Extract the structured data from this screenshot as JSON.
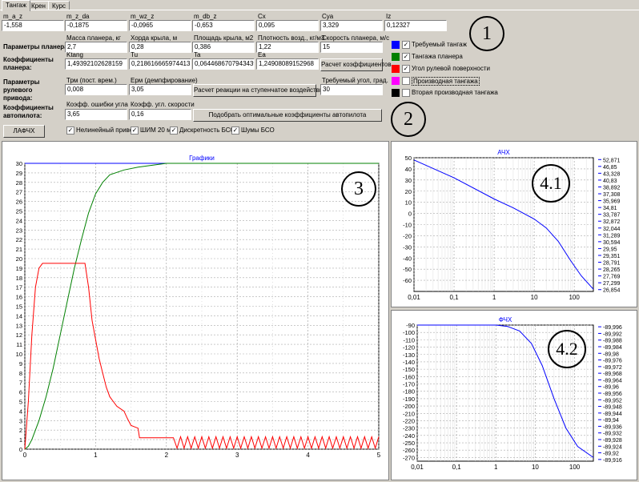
{
  "tabs": [
    "Тангаж",
    "Крен",
    "Курс"
  ],
  "params_row1": [
    {
      "label": "m_a_z",
      "value": "-1,558"
    },
    {
      "label": "m_z_da",
      "value": "-0,1875"
    },
    {
      "label": "m_wz_z",
      "value": "-0,0965"
    },
    {
      "label": "m_db_z",
      "value": "-0,653"
    },
    {
      "label": "Cx",
      "value": "0,095"
    },
    {
      "label": "Cya",
      "value": "3,329"
    },
    {
      "label": "Iz",
      "value": "0,12327"
    }
  ],
  "glider": {
    "title": "Параметры планера:",
    "fields": [
      {
        "label": "Масса планера, кг",
        "value": "2,7"
      },
      {
        "label": "Хорда крыла, м",
        "value": "0,28"
      },
      {
        "label": "Площадь крыла, м2",
        "value": "0,386"
      },
      {
        "label": "Плотность возд., кг/м3",
        "value": "1,22"
      },
      {
        "label": "Скорость планера, м/с",
        "value": "15"
      }
    ]
  },
  "coeffs": {
    "title": "Коэффициенты планера:",
    "fields": [
      {
        "label": "Ktang",
        "value": "1,49392102628159"
      },
      {
        "label": "Tu",
        "value": "0,218616665974413"
      },
      {
        "label": "Ta",
        "value": "0,0644686707943439"
      },
      {
        "label": "Ea",
        "value": "1,24908089152968"
      }
    ],
    "button": "Расчет коэффициентов"
  },
  "actuator": {
    "title": "Параметры рулевого привода:",
    "fields": [
      {
        "label": "Трм (пост. врем.)",
        "value": "0,008"
      },
      {
        "label": "Ерм (демпфирование)",
        "value": "3,05"
      }
    ],
    "button": "Расчет реакции на ступенчатое воздействие",
    "angle_label": "Требуемый угол, град.",
    "angle_value": "30"
  },
  "autopilot": {
    "title": "Коэффициенты автопилота:",
    "fields": [
      {
        "label": "Коэфф. ошибки угла",
        "value": "3,65"
      },
      {
        "label": "Коэфф. угл. скорости",
        "value": "0,16"
      }
    ],
    "button": "Подобрать оптимальные коэффициенты автопилота"
  },
  "legend": [
    {
      "label": "Требуемый тангаж",
      "color": "#0000ff",
      "checked": true
    },
    {
      "label": "Тангажа планера",
      "color": "#008000",
      "checked": true
    },
    {
      "label": "Угол рулевой поверхности",
      "color": "#ff0000",
      "checked": true
    },
    {
      "label": "Производная тангажа",
      "color": "#ff00ff",
      "checked": false
    },
    {
      "label": "Вторая производная тангажа",
      "color": "#000000",
      "checked": false
    }
  ],
  "options": {
    "lafchx_button": "ЛАФЧХ",
    "checks": [
      {
        "label": "Нелинейный привод",
        "checked": true
      },
      {
        "label": "ШИМ 20 мс",
        "checked": true
      },
      {
        "label": "Дискретность БСО",
        "checked": true
      },
      {
        "label": "Шумы БСО",
        "checked": true
      }
    ]
  },
  "annotations": [
    "1",
    "2",
    "3",
    "4.1",
    "4.2"
  ],
  "chart_data": [
    {
      "type": "line",
      "title": "Графики",
      "xlim": [
        0,
        5
      ],
      "ylim": [
        0,
        30
      ],
      "x_ticks": [
        "0",
        "1",
        "2",
        "3",
        "4",
        "5"
      ],
      "y_ticks": [
        "0",
        "1",
        "2",
        "3",
        "4",
        "5",
        "6",
        "7",
        "8",
        "9",
        "10",
        "11",
        "12",
        "13",
        "14",
        "15",
        "16",
        "17",
        "18",
        "19",
        "20",
        "21",
        "22",
        "23",
        "24",
        "25",
        "26",
        "27",
        "28",
        "29",
        "30"
      ],
      "series": [
        {
          "color": "#0000ff",
          "x": [
            0,
            5
          ],
          "y": [
            30,
            30
          ]
        },
        {
          "color": "#008000",
          "x": [
            0,
            0.05,
            0.1,
            0.2,
            0.3,
            0.4,
            0.5,
            0.6,
            0.7,
            0.8,
            0.9,
            1.0,
            1.1,
            1.2,
            1.4,
            1.6,
            1.8,
            2.0,
            2.2,
            2.5,
            5
          ],
          "y": [
            0,
            0.3,
            1,
            3,
            5.5,
            8.5,
            12,
            15.5,
            19,
            22,
            24.8,
            26.8,
            28,
            28.8,
            29.3,
            29.6,
            29.8,
            30,
            30,
            30,
            30
          ]
        },
        {
          "color": "#ff0000",
          "x": [
            0,
            0.05,
            0.1,
            0.15,
            0.2,
            0.25,
            0.85,
            0.9,
            0.95,
            1.0,
            1.05,
            1.1,
            1.15,
            1.2,
            1.25,
            1.3,
            1.4,
            1.45,
            1.5,
            1.6,
            1.62,
            1.65,
            2.05,
            2.1,
            2.15,
            2.2,
            2.25,
            2.3,
            2.35,
            2.4,
            2.45,
            2.5,
            2.55,
            2.6,
            2.65,
            2.7,
            2.75,
            2.8,
            2.85,
            2.9,
            2.95,
            3.0,
            3.05,
            3.1,
            3.15,
            3.2,
            3.25,
            3.3,
            3.35,
            3.4,
            3.45,
            3.5,
            3.55,
            3.6,
            3.65,
            3.7,
            3.75,
            3.8,
            3.85,
            3.9,
            3.95,
            4.0,
            4.05,
            4.1,
            4.15,
            4.2,
            4.25,
            4.3,
            4.35,
            4.4,
            4.45,
            4.5,
            4.55,
            4.6,
            4.65,
            4.7,
            4.75,
            4.8,
            4.85,
            4.9,
            4.95,
            5.0
          ],
          "y": [
            0,
            5,
            12,
            17,
            19,
            19.5,
            19.5,
            17,
            13.5,
            11.5,
            9.5,
            8,
            6.5,
            5.5,
            5,
            4.5,
            4,
            3.2,
            2.5,
            2.2,
            1.2,
            1.2,
            1.2,
            1.2,
            0.1,
            1.3,
            0.1,
            1.3,
            0.1,
            1.3,
            0.1,
            1.3,
            0.1,
            1.3,
            0.1,
            1.3,
            0.1,
            1.3,
            0.1,
            1.3,
            0.1,
            1.3,
            0.1,
            1.3,
            0.1,
            1.3,
            0.1,
            1.3,
            0.1,
            1.3,
            0.1,
            1.3,
            0.1,
            1.3,
            0.1,
            1.3,
            0.1,
            1.3,
            0.1,
            1.3,
            0.1,
            1.3,
            0.1,
            1.3,
            0.1,
            1.3,
            0.1,
            1.3,
            0.1,
            1.3,
            0.1,
            1.3,
            0.1,
            1.3,
            0.1,
            1.3,
            0.1,
            1.3,
            0.1,
            1.3,
            0.1,
            1.3
          ]
        }
      ]
    },
    {
      "type": "line",
      "title": "АЧХ",
      "log_x": true,
      "xlim": [
        0.01,
        300
      ],
      "ylim": [
        -70,
        50
      ],
      "x_ticks": [
        "0,01",
        "0,1",
        "1",
        "10",
        "100"
      ],
      "y_ticks": [
        "50",
        "40",
        "30",
        "20",
        "10",
        "0",
        "-10",
        "-20",
        "-30",
        "-40",
        "-50",
        "-60"
      ],
      "series": [
        {
          "color": "#0000ff",
          "x": [
            0.01,
            0.1,
            1,
            3,
            10,
            20,
            40,
            80,
            150,
            300
          ],
          "y": [
            48,
            32,
            13,
            5,
            -5,
            -13,
            -25,
            -42,
            -56,
            -68
          ]
        }
      ],
      "side_values": [
        "52,871",
        "46,85",
        "43,328",
        "40,83",
        "38,892",
        "37,308",
        "35,969",
        "34,81",
        "33,787",
        "32,872",
        "32,044",
        "31,289",
        "30,594",
        "29,95",
        "29,351",
        "28,791",
        "28,265",
        "27,769",
        "27,299",
        "26,854"
      ]
    },
    {
      "type": "line",
      "title": "ФЧХ",
      "log_x": true,
      "xlim": [
        0.01,
        300
      ],
      "ylim": [
        -275,
        -90
      ],
      "x_ticks": [
        "0,01",
        "0,1",
        "1",
        "10",
        "100"
      ],
      "y_ticks": [
        "-90",
        "-100",
        "-110",
        "-120",
        "-130",
        "-140",
        "-150",
        "-160",
        "-170",
        "-180",
        "-190",
        "-200",
        "-210",
        "-220",
        "-230",
        "-240",
        "-250",
        "-260",
        "-270"
      ],
      "series": [
        {
          "color": "#0000ff",
          "x": [
            0.01,
            0.1,
            1,
            2,
            4,
            8,
            15,
            30,
            60,
            120,
            300
          ],
          "y": [
            -90,
            -90,
            -90,
            -92,
            -98,
            -115,
            -145,
            -190,
            -230,
            -255,
            -270
          ]
        }
      ],
      "side_values": [
        "-89,996",
        "-89,992",
        "-89,988",
        "-89,984",
        "-89,98",
        "-89,976",
        "-89,972",
        "-89,968",
        "-89,964",
        "-89,96",
        "-89,956",
        "-89,952",
        "-89,948",
        "-89,944",
        "-89,94",
        "-89,936",
        "-89,932",
        "-89,928",
        "-89,924",
        "-89,92",
        "-89,916"
      ]
    }
  ]
}
